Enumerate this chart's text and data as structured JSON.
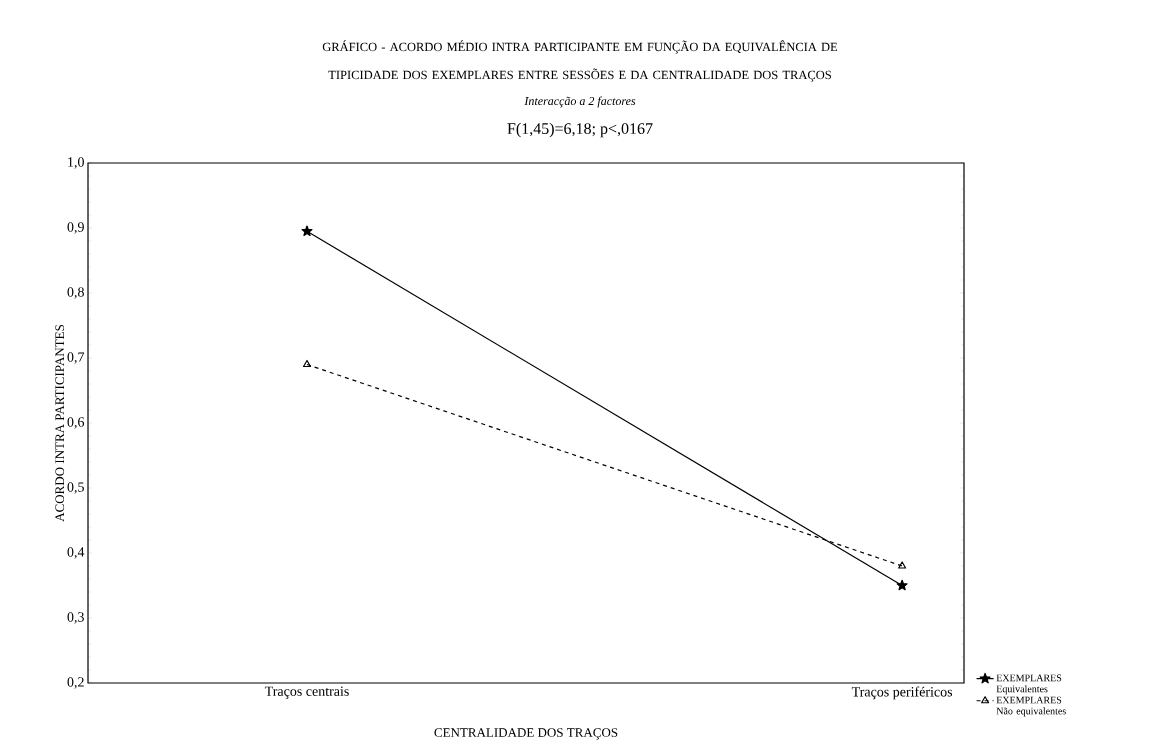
{
  "chart_data": {
    "type": "line",
    "title": "GRÁFICO - ACORDO MÉDIO INTRA PARTICIPANTE EM FUNÇÃO DA EQUIVALÊNCIA DE TIPICIDADE DOS EXEMPLARES ENTRE SESSÕES E DA CENTRALIDADE DOS TRAÇOS",
    "subtitle": "Interacção a 2 factores",
    "annotations": [
      "F(1,45)=6,18; p<,0167"
    ],
    "xlabel": "CENTRALIDADE DOS TRAÇOS",
    "ylabel": "ACORDO INTRA PARTICIPANTES",
    "categories": [
      "Traços centrais",
      "Traços periféricos"
    ],
    "series": [
      {
        "name": "EXEMPLARES Equivalentes",
        "color": "#000000",
        "values": [
          0.895,
          0.35
        ],
        "marker": "star",
        "line_style": "solid"
      },
      {
        "name": "EXEMPLARES Não equivalentes",
        "color": "#000000",
        "values": [
          0.69,
          0.38
        ],
        "marker": "triangle",
        "line_style": "dashed"
      }
    ],
    "ylim": [
      0.2,
      1.0
    ],
    "yticks": [
      {
        "value": 0.2,
        "label": "0,2"
      },
      {
        "value": 0.3,
        "label": "0,3"
      },
      {
        "value": 0.4,
        "label": "0,4"
      },
      {
        "value": 0.5,
        "label": "0,5"
      },
      {
        "value": 0.6,
        "label": "0,6"
      },
      {
        "value": 0.7,
        "label": "0,7"
      },
      {
        "value": 0.8,
        "label": "0,8"
      },
      {
        "value": 0.9,
        "label": "0,9"
      },
      {
        "value": 1.0,
        "label": "1,0"
      }
    ],
    "grid": false,
    "legend": "bottom right"
  }
}
